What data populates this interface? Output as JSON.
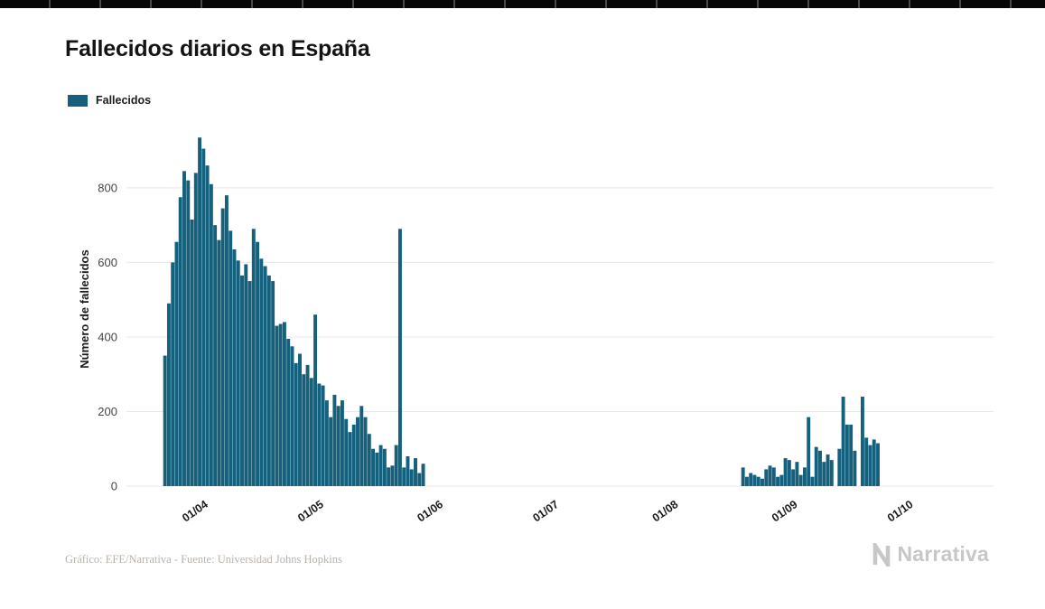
{
  "colors": {
    "bar": "#15607c",
    "grid": "#e8e8e8",
    "muted": "#b9b3ad",
    "brand": "#c7c7c7"
  },
  "footer": {
    "credit": "Gráfico: EFE/Narrativa - Fuente: Universidad Johns Hopkins"
  },
  "brand": {
    "name": "Narrativa"
  },
  "chart_data": {
    "type": "bar",
    "title": "Fallecidos diarios en España",
    "series_name": "Fallecidos",
    "xlabel": "",
    "ylabel": "Número de fallecidos",
    "ylim": [
      0,
      950
    ],
    "yticks": [
      0,
      200,
      400,
      600,
      800
    ],
    "grid": "horizontal",
    "legend_position": "top-left",
    "x_range": {
      "start": "23/03",
      "end": "01/10",
      "frequency": "daily"
    },
    "zero_note": "All dates in range not listed in points have value 0",
    "points_format": [
      "day_index",
      "date",
      "value"
    ],
    "points": [
      [
        0,
        "23/03",
        350
      ],
      [
        1,
        "24/03",
        490
      ],
      [
        2,
        "25/03",
        600
      ],
      [
        3,
        "26/03",
        655
      ],
      [
        4,
        "27/03",
        775
      ],
      [
        5,
        "28/03",
        845
      ],
      [
        6,
        "29/03",
        820
      ],
      [
        7,
        "30/03",
        715
      ],
      [
        8,
        "31/03",
        840
      ],
      [
        9,
        "01/04",
        935
      ],
      [
        10,
        "02/04",
        905
      ],
      [
        11,
        "03/04",
        860
      ],
      [
        12,
        "04/04",
        810
      ],
      [
        13,
        "05/04",
        700
      ],
      [
        14,
        "06/04",
        660
      ],
      [
        15,
        "07/04",
        745
      ],
      [
        16,
        "08/04",
        780
      ],
      [
        17,
        "09/04",
        685
      ],
      [
        18,
        "10/04",
        635
      ],
      [
        19,
        "11/04",
        605
      ],
      [
        20,
        "12/04",
        565
      ],
      [
        21,
        "13/04",
        595
      ],
      [
        22,
        "14/04",
        550
      ],
      [
        23,
        "15/04",
        690
      ],
      [
        24,
        "16/04",
        655
      ],
      [
        25,
        "17/04",
        610
      ],
      [
        26,
        "18/04",
        590
      ],
      [
        27,
        "19/04",
        565
      ],
      [
        28,
        "20/04",
        550
      ],
      [
        29,
        "21/04",
        430
      ],
      [
        30,
        "22/04",
        435
      ],
      [
        31,
        "23/04",
        440
      ],
      [
        32,
        "24/04",
        395
      ],
      [
        33,
        "25/04",
        375
      ],
      [
        34,
        "26/04",
        330
      ],
      [
        35,
        "27/04",
        355
      ],
      [
        36,
        "28/04",
        300
      ],
      [
        37,
        "29/04",
        325
      ],
      [
        38,
        "30/04",
        290
      ],
      [
        39,
        "01/05",
        460
      ],
      [
        40,
        "02/05",
        275
      ],
      [
        41,
        "03/05",
        270
      ],
      [
        42,
        "04/05",
        230
      ],
      [
        43,
        "05/05",
        185
      ],
      [
        44,
        "06/05",
        245
      ],
      [
        45,
        "07/05",
        215
      ],
      [
        46,
        "08/05",
        230
      ],
      [
        47,
        "09/05",
        180
      ],
      [
        48,
        "10/05",
        145
      ],
      [
        49,
        "11/05",
        165
      ],
      [
        50,
        "12/05",
        185
      ],
      [
        51,
        "13/05",
        215
      ],
      [
        52,
        "14/05",
        185
      ],
      [
        53,
        "15/05",
        140
      ],
      [
        54,
        "16/05",
        100
      ],
      [
        55,
        "17/05",
        90
      ],
      [
        56,
        "18/05",
        110
      ],
      [
        57,
        "19/05",
        100
      ],
      [
        58,
        "20/05",
        50
      ],
      [
        59,
        "21/05",
        55
      ],
      [
        60,
        "22/05",
        110
      ],
      [
        61,
        "23/05",
        690
      ],
      [
        62,
        "24/05",
        50
      ],
      [
        63,
        "25/05",
        80
      ],
      [
        64,
        "26/05",
        45
      ],
      [
        65,
        "27/05",
        75
      ],
      [
        66,
        "28/05",
        35
      ],
      [
        67,
        "29/05",
        60
      ],
      [
        150,
        "20/08",
        50
      ],
      [
        151,
        "21/08",
        25
      ],
      [
        152,
        "22/08",
        35
      ],
      [
        153,
        "23/08",
        30
      ],
      [
        154,
        "24/08",
        25
      ],
      [
        155,
        "25/08",
        20
      ],
      [
        156,
        "26/08",
        45
      ],
      [
        157,
        "27/08",
        55
      ],
      [
        158,
        "28/08",
        50
      ],
      [
        159,
        "29/08",
        25
      ],
      [
        160,
        "30/08",
        30
      ],
      [
        161,
        "31/08",
        75
      ],
      [
        162,
        "01/09",
        70
      ],
      [
        163,
        "02/09",
        45
      ],
      [
        164,
        "03/09",
        65
      ],
      [
        165,
        "04/09",
        30
      ],
      [
        166,
        "05/09",
        50
      ],
      [
        167,
        "06/09",
        185
      ],
      [
        168,
        "07/09",
        25
      ],
      [
        169,
        "08/09",
        105
      ],
      [
        170,
        "09/09",
        95
      ],
      [
        171,
        "10/09",
        65
      ],
      [
        172,
        "11/09",
        85
      ],
      [
        173,
        "12/09",
        70
      ],
      [
        175,
        "14/09",
        100
      ],
      [
        176,
        "15/09",
        240
      ],
      [
        177,
        "16/09",
        165
      ],
      [
        178,
        "17/09",
        165
      ],
      [
        179,
        "18/09",
        95
      ],
      [
        181,
        "20/09",
        240
      ],
      [
        182,
        "21/09",
        130
      ],
      [
        183,
        "22/09",
        110
      ],
      [
        184,
        "23/09",
        125
      ],
      [
        185,
        "24/09",
        115
      ]
    ],
    "xticks": [
      {
        "label": "01/04",
        "day_index": 9
      },
      {
        "label": "01/05",
        "day_index": 39
      },
      {
        "label": "01/06",
        "day_index": 70
      },
      {
        "label": "01/07",
        "day_index": 100
      },
      {
        "label": "01/08",
        "day_index": 131
      },
      {
        "label": "01/09",
        "day_index": 162
      },
      {
        "label": "01/10",
        "day_index": 192
      }
    ]
  }
}
